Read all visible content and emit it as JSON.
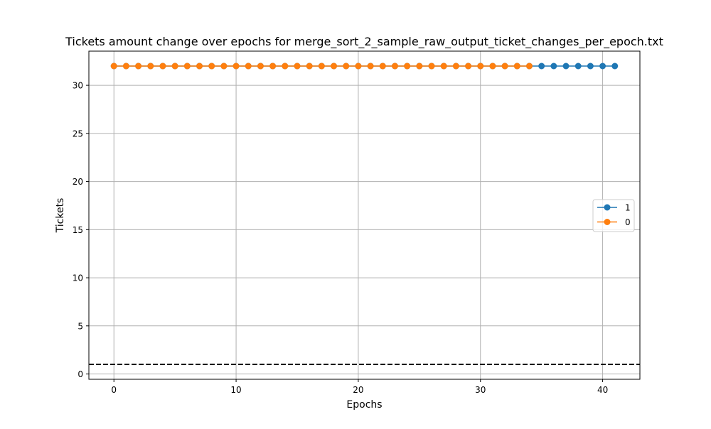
{
  "chart_data": {
    "type": "line",
    "title": "Tickets amount change over epochs for merge_sort_2_sample_raw_output_ticket_changes_per_epoch.txt",
    "xlabel": "Epochs",
    "ylabel": "Tickets",
    "xlim": [
      -2.05,
      43.05
    ],
    "ylim": [
      -0.55,
      33.55
    ],
    "x_ticks": [
      0,
      10,
      20,
      30,
      40
    ],
    "y_ticks": [
      0,
      5,
      10,
      15,
      20,
      25,
      30
    ],
    "grid": true,
    "legend": "center-right",
    "series": [
      {
        "name": "1",
        "color": "#1f77b4",
        "x": [
          0,
          1,
          2,
          3,
          4,
          5,
          6,
          7,
          8,
          9,
          10,
          11,
          12,
          13,
          14,
          15,
          16,
          17,
          18,
          19,
          20,
          21,
          22,
          23,
          24,
          25,
          26,
          27,
          28,
          29,
          30,
          31,
          32,
          33,
          34,
          35,
          36,
          37,
          38,
          39,
          40,
          41
        ],
        "values": [
          32,
          32,
          32,
          32,
          32,
          32,
          32,
          32,
          32,
          32,
          32,
          32,
          32,
          32,
          32,
          32,
          32,
          32,
          32,
          32,
          32,
          32,
          32,
          32,
          32,
          32,
          32,
          32,
          32,
          32,
          32,
          32,
          32,
          32,
          32,
          32,
          32,
          32,
          32,
          32,
          32,
          32
        ]
      },
      {
        "name": "0",
        "color": "#ff7f0e",
        "x": [
          0,
          1,
          2,
          3,
          4,
          5,
          6,
          7,
          8,
          9,
          10,
          11,
          12,
          13,
          14,
          15,
          16,
          17,
          18,
          19,
          20,
          21,
          22,
          23,
          24,
          25,
          26,
          27,
          28,
          29,
          30,
          31,
          32,
          33,
          34
        ],
        "values": [
          32,
          32,
          32,
          32,
          32,
          32,
          32,
          32,
          32,
          32,
          32,
          32,
          32,
          32,
          32,
          32,
          32,
          32,
          32,
          32,
          32,
          32,
          32,
          32,
          32,
          32,
          32,
          32,
          32,
          32,
          32,
          32,
          32,
          32,
          32
        ]
      }
    ],
    "reference_line": {
      "y": 1,
      "style": "dashed",
      "color": "#000000"
    }
  }
}
